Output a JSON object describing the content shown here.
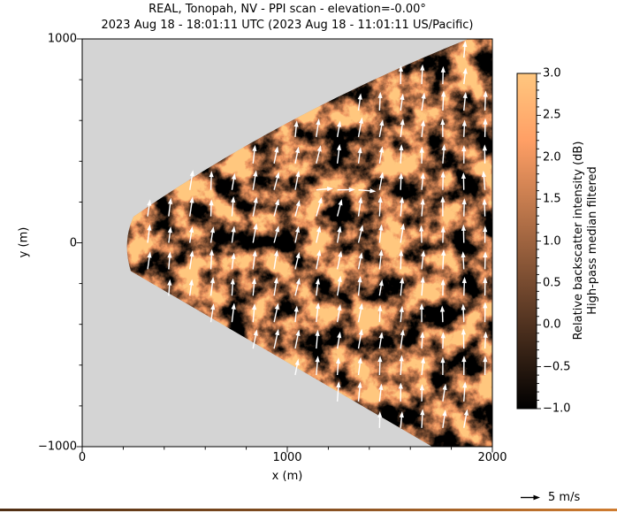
{
  "figure": {
    "title_line1": "REAL, Tonopah, NV - PPI scan - elevation=-0.00°",
    "title_line2": "2023 Aug 18 - 18:01:11 UTC (2023 Aug 18 - 11:01:11 US/Pacific)"
  },
  "axes": {
    "xlabel": "x (m)",
    "ylabel": "y (m)",
    "x_tick_labels": [
      "0",
      "1000",
      "2000"
    ],
    "y_tick_labels": [
      "1000",
      "0",
      "−1000"
    ]
  },
  "colorbar": {
    "tick_labels": [
      "3.0",
      "2.5",
      "2.0",
      "1.5",
      "1.0",
      "0.5",
      "0.0",
      "−0.5",
      "−1.0"
    ],
    "label_line1": "Relative backscatter intensity (dB)",
    "label_line2": "High-pass median filtered",
    "colormap": "copper",
    "vmin": -1.0,
    "vmax": 3.0
  },
  "legend": {
    "reference_arrow_label": "5 m/s"
  },
  "colors": {
    "outside_scan_background": "#d4d4d4",
    "arrow_color": "#ffffff",
    "copper_top": "#ffc77f",
    "copper_bottom": "#000000",
    "accent_bar_left": "#4f2e13",
    "accent_bar_right": "#cf7c30"
  },
  "chart_data": {
    "type": "heatmap",
    "subtype": "lidar_ppi_scan_with_wind_quiver",
    "title": "REAL, Tonopah, NV - PPI scan - elevation=-0.00°",
    "subtitle": "2023 Aug 18 - 18:01:11 UTC (2023 Aug 18 - 11:01:11 US/Pacific)",
    "xlabel": "x (m)",
    "ylabel": "y (m)",
    "xlim": [
      0,
      2000
    ],
    "ylim": [
      -1000,
      1000
    ],
    "x_major_ticks": [
      0,
      1000,
      2000
    ],
    "y_major_ticks": [
      -1000,
      0,
      1000
    ],
    "minor_tick_interval_m": 200,
    "grid": false,
    "scan_sector": {
      "apex_m": [
        0,
        0
      ],
      "inner_range_m": 250,
      "outer_range_m": "extends beyond axes (clipped at x=2000, y=±1000)",
      "half_angle_deg": 31,
      "fill": "mottled speckle of high-pass median filtered relative backscatter, copper colormap (-1 to 3 dB)"
    },
    "colorbar": {
      "label": "Relative backscatter intensity (dB)",
      "sublabel": "High-pass median filtered",
      "ticks": [
        3.0,
        2.5,
        2.0,
        1.5,
        1.0,
        0.5,
        0.0,
        -0.5,
        -1.0
      ],
      "vmin": -1.0,
      "vmax": 3.0,
      "minor_tick_interval": 0.1,
      "colormap": "copper",
      "position": "right"
    },
    "quiver": {
      "color": "#ffffff",
      "approx_grid_spacing_m": [
        103,
        130
      ],
      "dominant_direction": "toward +y (up/north)",
      "approx_speed_m_s": 5,
      "anomaly": "a few arrows point toward +x near x=1100–1400 m, y≈230 m",
      "reference": {
        "label": "5 m/s",
        "position": "below axes, bottom right"
      }
    },
    "background_outside_sector": "#d4d4d4"
  }
}
